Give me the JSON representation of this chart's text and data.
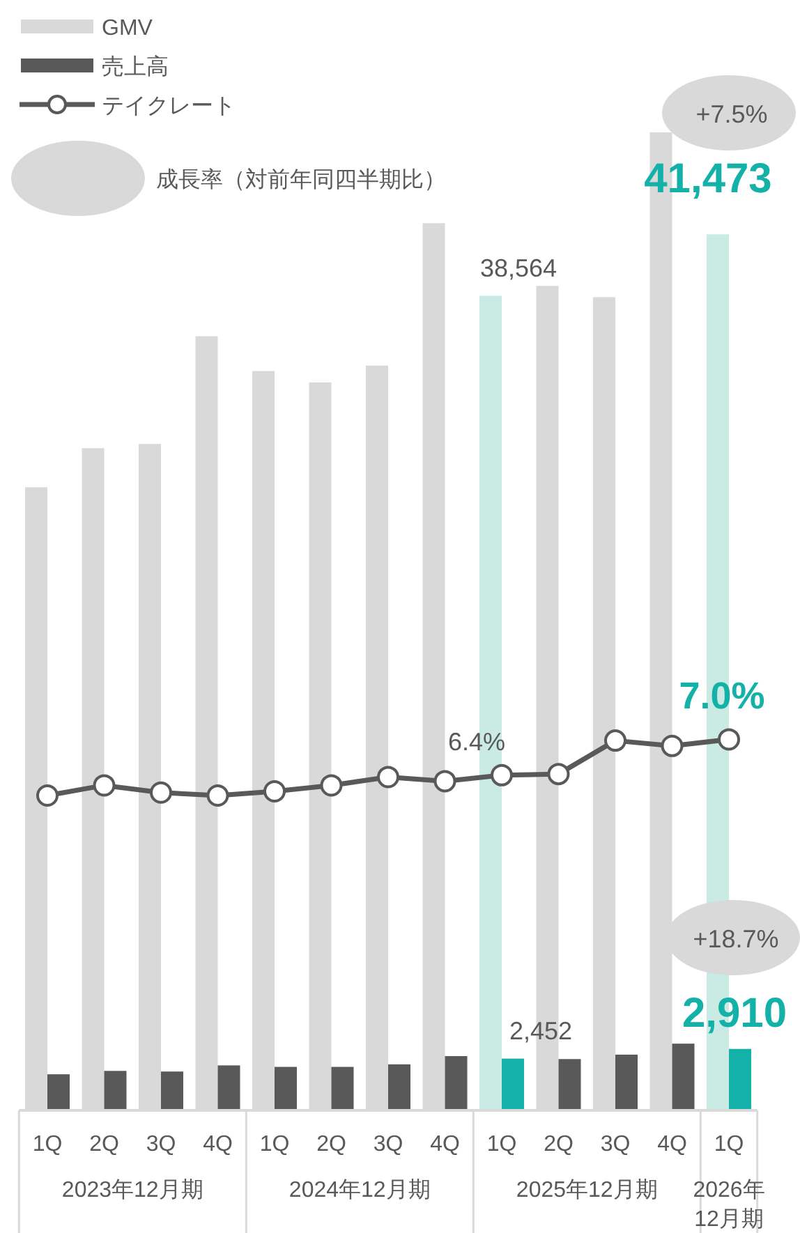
{
  "chart_data": {
    "type": "bar",
    "categories": [
      "1Q",
      "2Q",
      "3Q",
      "4Q",
      "1Q",
      "2Q",
      "3Q",
      "4Q",
      "1Q",
      "2Q",
      "3Q",
      "4Q",
      "1Q"
    ],
    "tick_labels": "x",
    "legend": "top left",
    "grid": false,
    "series": [
      {
        "name": "GMV",
        "color": "#d9d9d9",
        "colors": [
          "#d9d9d9",
          "#d9d9d9",
          "#d9d9d9",
          "#d9d9d9",
          "#d9d9d9",
          "#d9d9d9",
          "#d9d9d9",
          "#d9d9d9",
          "#c9ebe3",
          "#d9d9d9",
          "#d9d9d9",
          "#d9d9d9",
          "#c9ebe3"
        ],
        "values": [
          29500,
          31350,
          31550,
          36650,
          35000,
          34460,
          35260,
          42000,
          38564,
          39030,
          38500,
          46300,
          41473
        ],
        "value_labels": [
          null,
          null,
          null,
          null,
          null,
          null,
          null,
          null,
          "38,564",
          null,
          null,
          null,
          "41,473"
        ]
      },
      {
        "name": "売上高",
        "color": "#595959",
        "colors": [
          "#595959",
          "#595959",
          "#595959",
          "#595959",
          "#595959",
          "#595959",
          "#595959",
          "#595959",
          "#14b1a8",
          "#595959",
          "#595959",
          "#595959",
          "#14b1a8"
        ],
        "values": [
          1710,
          1870,
          1840,
          2130,
          2060,
          2060,
          2180,
          2570,
          2452,
          2430,
          2640,
          3160,
          2910
        ],
        "value_labels": [
          null,
          null,
          null,
          null,
          null,
          null,
          null,
          null,
          "2,452",
          null,
          null,
          null,
          "2,910"
        ]
      },
      {
        "name": "テイクレート",
        "type": "line",
        "axis": "y2",
        "marker": "circle",
        "line_style": "solid",
        "color": "#595959",
        "values": [
          6.06,
          6.23,
          6.11,
          6.06,
          6.13,
          6.23,
          6.37,
          6.3,
          6.4,
          6.42,
          6.98,
          6.89,
          7.0
        ],
        "value_labels": [
          null,
          null,
          null,
          null,
          null,
          null,
          null,
          null,
          "6.4%",
          null,
          null,
          null,
          "7.0%"
        ]
      }
    ],
    "annotations": [
      "成長率（対前年同四半期比）",
      "+7.5%",
      "+18.7%",
      "2023年12月期",
      "2024年12月期",
      "2025年12月期",
      "2026年12月期"
    ]
  }
}
